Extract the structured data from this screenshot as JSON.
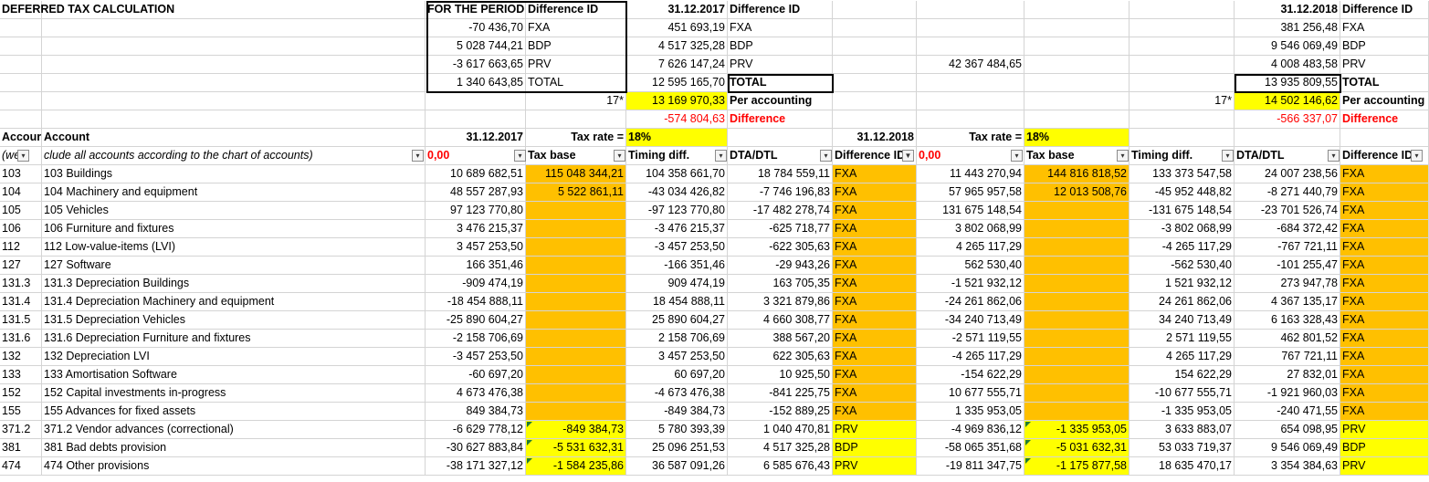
{
  "title": "DEFERRED TAX CALCULATION",
  "summary": {
    "period_header": "FOR THE PERIOD",
    "diff_id_header": "Difference ID",
    "date_2017": "31.12.2017",
    "date_2018": "31.12.2018",
    "period_rows": [
      [
        "-70 436,70",
        "FXA"
      ],
      [
        "5 028 744,21",
        "BDP"
      ],
      [
        "-3 617 663,65",
        "PRV"
      ],
      [
        "1 340 643,85",
        "TOTAL"
      ]
    ],
    "rows_2017": [
      [
        "451 693,19",
        "FXA"
      ],
      [
        "4 517 325,28",
        "BDP"
      ],
      [
        "7 626 147,24",
        "PRV"
      ],
      [
        "12 595 165,70",
        "TOTAL"
      ]
    ],
    "rows_2018": [
      [
        "381 256,48",
        "FXA"
      ],
      [
        "9 546 069,49",
        "BDP"
      ],
      [
        "4 008 483,58",
        "PRV"
      ],
      [
        "13 935 809,55",
        "TOTAL"
      ]
    ],
    "extra_value": "42 367 484,65",
    "mark": "17*",
    "per_accounting_label": "Per accounting",
    "difference_label": "Difference",
    "per_accounting_2017": "13 169 970,33",
    "difference_2017": "-574 804,63",
    "per_accounting_2018": "14 502 146,62",
    "difference_2018": "-566 337,07"
  },
  "table": {
    "account_header": "Accour",
    "account_name_header": "Account",
    "date_2017": "31.12.2017",
    "date_2018": "31.12.2018",
    "tax_rate_label": "Tax rate =",
    "tax_rate_2017": "18%",
    "tax_rate_2018": "18%",
    "filter_prefix": "(we",
    "filter_note": "clude all accounts according to the chart of accounts)",
    "filter_total_2017": "0,00",
    "filter_total_2018": "0,00",
    "col_tax_base": "Tax base",
    "col_timing": "Timing diff.",
    "col_dta": "DTA/DTL",
    "col_difference": "Difference ID"
  },
  "rows": [
    {
      "code": "103",
      "name": "103 Buildings",
      "v17": "10 689 682,51",
      "tb17": "115 048 344,21",
      "td17": "104 358 661,70",
      "dta17": "18 784 559,11",
      "id17": "FXA",
      "v18": "11 443 270,94",
      "tb18": "144 816 818,52",
      "td18": "133 373 547,58",
      "dta18": "24 007 238,56",
      "id18": "FXA"
    },
    {
      "code": "104",
      "name": "104 Machinery and equipment",
      "v17": "48 557 287,93",
      "tb17": "5 522 861,11",
      "td17": "-43 034 426,82",
      "dta17": "-7 746 196,83",
      "id17": "FXA",
      "v18": "57 965 957,58",
      "tb18": "12 013 508,76",
      "td18": "-45 952 448,82",
      "dta18": "-8 271 440,79",
      "id18": "FXA"
    },
    {
      "code": "105",
      "name": "105 Vehicles",
      "v17": "97 123 770,80",
      "tb17": "",
      "td17": "-97 123 770,80",
      "dta17": "-17 482 278,74",
      "id17": "FXA",
      "v18": "131 675 148,54",
      "tb18": "",
      "td18": "-131 675 148,54",
      "dta18": "-23 701 526,74",
      "id18": "FXA"
    },
    {
      "code": "106",
      "name": "106 Furniture and fixtures",
      "v17": "3 476 215,37",
      "tb17": "",
      "td17": "-3 476 215,37",
      "dta17": "-625 718,77",
      "id17": "FXA",
      "v18": "3 802 068,99",
      "tb18": "",
      "td18": "-3 802 068,99",
      "dta18": "-684 372,42",
      "id18": "FXA"
    },
    {
      "code": "112",
      "name": "112 Low-value-items (LVI)",
      "v17": "3 457 253,50",
      "tb17": "",
      "td17": "-3 457 253,50",
      "dta17": "-622 305,63",
      "id17": "FXA",
      "v18": "4 265 117,29",
      "tb18": "",
      "td18": "-4 265 117,29",
      "dta18": "-767 721,11",
      "id18": "FXA"
    },
    {
      "code": "127",
      "name": "127 Software",
      "v17": "166 351,46",
      "tb17": "",
      "td17": "-166 351,46",
      "dta17": "-29 943,26",
      "id17": "FXA",
      "v18": "562 530,40",
      "tb18": "",
      "td18": "-562 530,40",
      "dta18": "-101 255,47",
      "id18": "FXA"
    },
    {
      "code": "131.3",
      "name": "131.3 Depreciation Buildings",
      "v17": "-909 474,19",
      "tb17": "",
      "td17": "909 474,19",
      "dta17": "163 705,35",
      "id17": "FXA",
      "v18": "-1 521 932,12",
      "tb18": "",
      "td18": "1 521 932,12",
      "dta18": "273 947,78",
      "id18": "FXA"
    },
    {
      "code": "131.4",
      "name": "131.4 Depreciation Machinery and equipment",
      "v17": "-18 454 888,11",
      "tb17": "",
      "td17": "18 454 888,11",
      "dta17": "3 321 879,86",
      "id17": "FXA",
      "v18": "-24 261 862,06",
      "tb18": "",
      "td18": "24 261 862,06",
      "dta18": "4 367 135,17",
      "id18": "FXA"
    },
    {
      "code": "131.5",
      "name": "131.5 Depreciation Vehicles",
      "v17": "-25 890 604,27",
      "tb17": "",
      "td17": "25 890 604,27",
      "dta17": "4 660 308,77",
      "id17": "FXA",
      "v18": "-34 240 713,49",
      "tb18": "",
      "td18": "34 240 713,49",
      "dta18": "6 163 328,43",
      "id18": "FXA"
    },
    {
      "code": "131.6",
      "name": "131.6 Depreciation Furniture and fixtures",
      "v17": "-2 158 706,69",
      "tb17": "",
      "td17": "2 158 706,69",
      "dta17": "388 567,20",
      "id17": "FXA",
      "v18": "-2 571 119,55",
      "tb18": "",
      "td18": "2 571 119,55",
      "dta18": "462 801,52",
      "id18": "FXA"
    },
    {
      "code": "132",
      "name": "132 Depreciation LVI",
      "v17": "-3 457 253,50",
      "tb17": "",
      "td17": "3 457 253,50",
      "dta17": "622 305,63",
      "id17": "FXA",
      "v18": "-4 265 117,29",
      "tb18": "",
      "td18": "4 265 117,29",
      "dta18": "767 721,11",
      "id18": "FXA"
    },
    {
      "code": "133",
      "name": "133 Amortisation Software",
      "v17": "-60 697,20",
      "tb17": "",
      "td17": "60 697,20",
      "dta17": "10 925,50",
      "id17": "FXA",
      "v18": "-154 622,29",
      "tb18": "",
      "td18": "154 622,29",
      "dta18": "27 832,01",
      "id18": "FXA"
    },
    {
      "code": "152",
      "name": "152 Capital investments in-progress",
      "v17": "4 673 476,38",
      "tb17": "",
      "td17": "-4 673 476,38",
      "dta17": "-841 225,75",
      "id17": "FXA",
      "v18": "10 677 555,71",
      "tb18": "",
      "td18": "-10 677 555,71",
      "dta18": "-1 921 960,03",
      "id18": "FXA"
    },
    {
      "code": "155",
      "name": "155 Advances for fixed assets",
      "v17": "849 384,73",
      "tb17": "",
      "td17": "-849 384,73",
      "dta17": "-152 889,25",
      "id17": "FXA",
      "v18": "1 335 953,05",
      "tb18": "",
      "td18": "-1 335 953,05",
      "dta18": "-240 471,55",
      "id18": "FXA"
    },
    {
      "code": "371.2",
      "name": "371.2 Vendor advances (correctional)",
      "v17": "-6 629 778,12",
      "tb17": "-849 384,73",
      "td17": "5 780 393,39",
      "dta17": "1 040 470,81",
      "id17": "PRV",
      "v18": "-4 969 836,12",
      "tb18": "-1 335 953,05",
      "td18": "3 633 883,07",
      "dta18": "654 098,95",
      "id18": "PRV"
    },
    {
      "code": "381",
      "name": "381 Bad debts provision",
      "v17": "-30 627 883,84",
      "tb17": "-5 531 632,31",
      "td17": "25 096 251,53",
      "dta17": "4 517 325,28",
      "id17": "BDP",
      "v18": "-58 065 351,68",
      "tb18": "-5 031 632,31",
      "td18": "53 033 719,37",
      "dta18": "9 546 069,49",
      "id18": "BDP"
    },
    {
      "code": "474",
      "name": "474 Other provisions",
      "v17": "-38 171 327,12",
      "tb17": "-1 584 235,86",
      "td17": "36 587 091,26",
      "dta17": "6 585 676,43",
      "id17": "PRV",
      "v18": "-19 811 347,75",
      "tb18": "-1 175 877,58",
      "td18": "18 635 470,17",
      "dta18": "3 354 384,63",
      "id18": "PRV"
    }
  ],
  "colors": {
    "yellow": "#ffff00",
    "orange": "#ffc000",
    "red": "#ff0000",
    "gridline": "#d4d4d4",
    "comment_marker": "#1e7b34"
  }
}
